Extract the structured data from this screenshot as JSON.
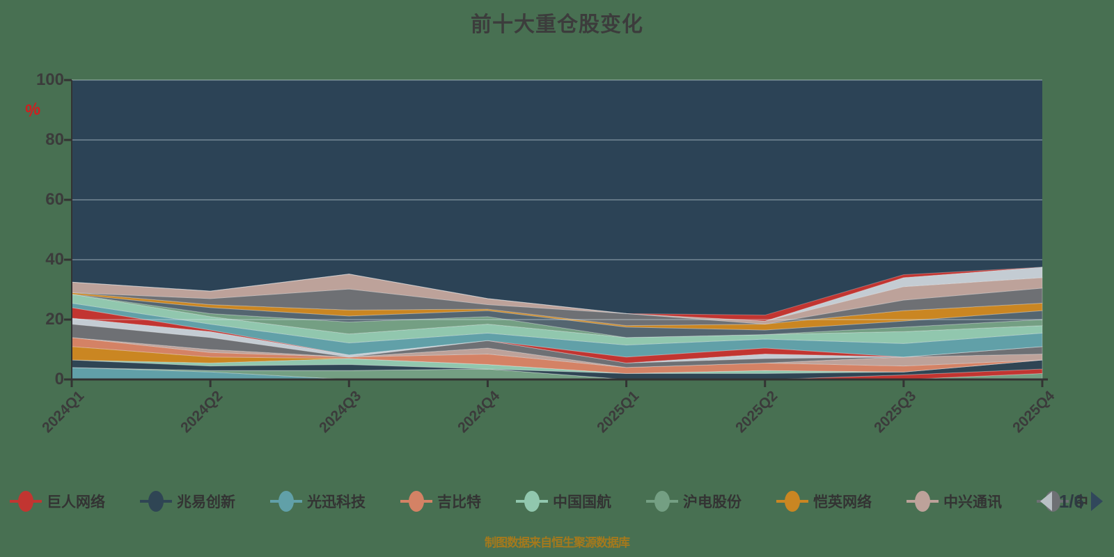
{
  "title": "前十大重仓股变化",
  "footer": "制图数据来自恒生聚源数据库",
  "y_axis": {
    "unit_symbol": "%",
    "labels": [
      "100",
      "80",
      "60",
      "40",
      "20",
      "0"
    ]
  },
  "x_axis": {
    "categories": [
      "2024Q1",
      "2024Q2",
      "2024Q3",
      "2024Q4",
      "2025Q1",
      "2025Q2",
      "2025Q3",
      "2025Q4"
    ]
  },
  "legend": {
    "items": [
      {
        "label": "巨人网络",
        "color": "#c23531"
      },
      {
        "label": "兆易创新",
        "color": "#2f4554"
      },
      {
        "label": "光迅科技",
        "color": "#61a0a8"
      },
      {
        "label": "吉比特",
        "color": "#d48265"
      },
      {
        "label": "中国国航",
        "color": "#91c7ae"
      },
      {
        "label": "沪电股份",
        "color": "#749f83"
      },
      {
        "label": "恺英网络",
        "color": "#ca8622"
      },
      {
        "label": "中兴通讯",
        "color": "#bda29a"
      },
      {
        "label": "中",
        "color": "#6e7074",
        "truncated": true
      }
    ],
    "pager": {
      "text": "1/6",
      "prev_enabled": false,
      "next_enabled": true
    }
  },
  "colors": {
    "page_background": "#487052",
    "plot_background": "#2c4356",
    "gridline": "rgba(216,226,234,0.32)",
    "axis": "#333333",
    "label_text": "#3b3b3b",
    "title_text": "#3c3c3c",
    "footer_text": "#a5791c",
    "unit_symbol": "#cf1f1f"
  },
  "chart_data": {
    "type": "area",
    "stacked": true,
    "title": "前十大重仓股变化",
    "xlabel": "",
    "ylabel": "%",
    "ylim": [
      0,
      100
    ],
    "grid": true,
    "legend_position": "bottom",
    "legend_pages": "1/6",
    "categories": [
      "2024Q1",
      "2024Q2",
      "2024Q3",
      "2024Q4",
      "2025Q1",
      "2025Q2",
      "2025Q3",
      "2025Q4"
    ],
    "series": [
      {
        "name": "光迅科技",
        "color": "#61a0a8",
        "values": [
          4,
          2.5,
          0,
          0,
          0,
          0,
          0,
          0
        ]
      },
      {
        "name": "沪电股份",
        "color": "#749f83",
        "values": [
          0,
          0.5,
          3,
          3.5,
          0,
          0,
          0,
          2
        ]
      },
      {
        "name": "巨人网络",
        "color": "#c23531",
        "values": [
          0,
          0,
          0,
          0,
          0,
          0,
          1.5,
          1.5
        ]
      },
      {
        "name": "兆易创新",
        "color": "#2f4554",
        "values": [
          2.5,
          1.5,
          2,
          0,
          2,
          2,
          1,
          3
        ]
      },
      {
        "name": "中国国航",
        "color": "#91c7ae",
        "values": [
          0,
          1,
          2,
          1.5,
          0,
          1,
          0,
          0
        ]
      },
      {
        "name": "恺英网络",
        "color": "#ca8622",
        "values": [
          4.5,
          2,
          0,
          0,
          0,
          0,
          0,
          0
        ]
      },
      {
        "name": "吉比特",
        "color": "#d48265",
        "values": [
          3,
          1.5,
          0.5,
          3.5,
          2,
          2.5,
          2,
          0
        ]
      },
      {
        "name": "中兴通讯",
        "color": "#bda29a",
        "values": [
          0,
          1,
          0,
          2,
          0,
          0,
          3,
          2
        ]
      },
      {
        "name": "中",
        "color": "#6e7074",
        "values": [
          4.5,
          4,
          0,
          2.5,
          1.5,
          1.5,
          0,
          2.5
        ]
      },
      {
        "name": "",
        "color": "#c4ccd3",
        "values": [
          2,
          2,
          0.7,
          0,
          0,
          1.5,
          0,
          0
        ]
      },
      {
        "name": "",
        "color": "#c23531",
        "values": [
          3.5,
          0.5,
          0,
          0,
          2,
          2,
          0,
          0
        ]
      },
      {
        "name": "",
        "color": "#61a0a8",
        "values": [
          1.5,
          2,
          4,
          2.5,
          4,
          3,
          4.5,
          4.5
        ]
      },
      {
        "name": "",
        "color": "#91c7ae",
        "values": [
          3,
          2.5,
          3,
          3,
          2.5,
          1.5,
          4,
          2.5
        ]
      },
      {
        "name": "",
        "color": "#749f83",
        "values": [
          0,
          1,
          4,
          2.5,
          0,
          0,
          1.5,
          2
        ]
      },
      {
        "name": "",
        "color": "#546570",
        "values": [
          0,
          2,
          2,
          2,
          3.5,
          1.5,
          2,
          3
        ]
      },
      {
        "name": "",
        "color": "#ca8622",
        "values": [
          0.5,
          1,
          2,
          0.5,
          0.5,
          2,
          3.5,
          2.5
        ]
      },
      {
        "name": "",
        "color": "#6e7074",
        "values": [
          0,
          2,
          7,
          1.5,
          4,
          0,
          3.5,
          5
        ]
      },
      {
        "name": "",
        "color": "#bda29a",
        "values": [
          3.5,
          2.5,
          5,
          2,
          0,
          1,
          4.5,
          3.5
        ]
      },
      {
        "name": "",
        "color": "#c4ccd3",
        "values": [
          0,
          0,
          0,
          0,
          0,
          0,
          3,
          3.5
        ]
      },
      {
        "name": "",
        "color": "#c23531",
        "values": [
          0,
          0,
          0,
          0,
          0,
          2,
          1,
          0
        ]
      }
    ]
  }
}
